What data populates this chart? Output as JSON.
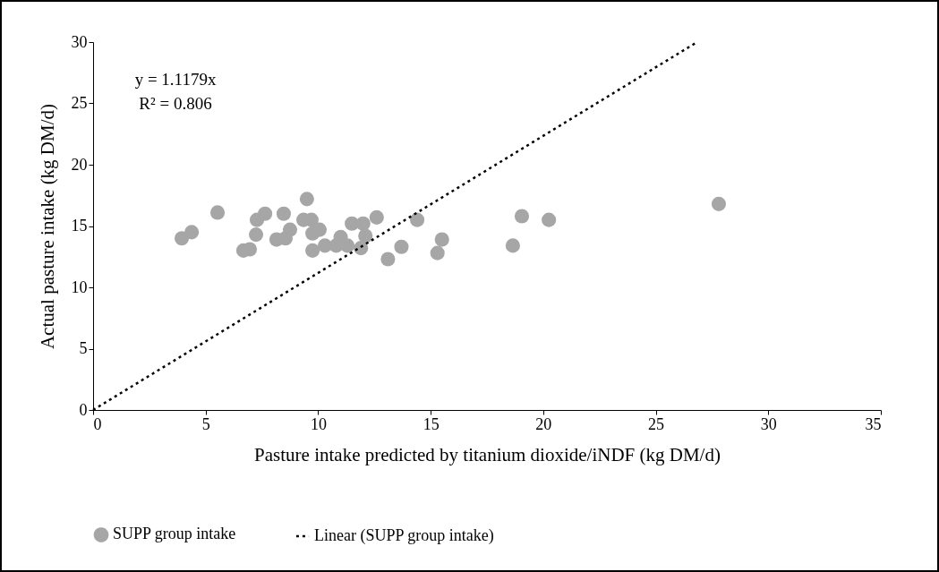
{
  "chart_data": {
    "type": "scatter",
    "xlabel": "Pasture intake predicted by titanium dioxide/iNDF (kg DM/d)",
    "ylabel": "Actual pasture intake (kg DM/d)",
    "xlim": [
      0,
      35
    ],
    "xticks": [
      0,
      5,
      10,
      15,
      20,
      25,
      30,
      35
    ],
    "ylim": [
      0,
      30
    ],
    "yticks": [
      0,
      5,
      10,
      15,
      20,
      25,
      30
    ],
    "grid": false,
    "legend": "bottom",
    "annotations": [
      "y = 1.1179x",
      "R² = 0.806"
    ],
    "series": [
      {
        "name": "SUPP group intake",
        "marker": "circle",
        "color": "#a6a6a6",
        "x": [
          3.94,
          4.38,
          5.53,
          6.68,
          6.96,
          7.24,
          7.28,
          7.64,
          8.47,
          8.15,
          8.55,
          8.75,
          9.5,
          9.35,
          9.7,
          9.75,
          10.06,
          9.75,
          10.3,
          10.8,
          11.0,
          11.3,
          11.5,
          12.0,
          12.1,
          11.9,
          12.6,
          13.7,
          13.1,
          14.4,
          15.5,
          15.3,
          19.05,
          20.25,
          18.65,
          27.8
        ],
        "values": [
          14.0,
          14.5,
          16.1,
          13.0,
          13.1,
          14.3,
          15.5,
          16.0,
          16.0,
          13.9,
          14.0,
          14.7,
          17.2,
          15.5,
          15.5,
          14.4,
          14.7,
          13.0,
          13.4,
          13.4,
          14.1,
          13.4,
          15.2,
          15.2,
          14.2,
          13.2,
          15.7,
          13.3,
          12.3,
          15.5,
          13.9,
          12.8,
          15.8,
          15.5,
          13.4,
          16.8
        ]
      },
      {
        "name": "Linear (SUPP group intake)",
        "type": "line",
        "color": "#000000",
        "line_style": "dotted",
        "x": [
          0,
          26.84
        ],
        "values": [
          0,
          30
        ]
      }
    ]
  }
}
